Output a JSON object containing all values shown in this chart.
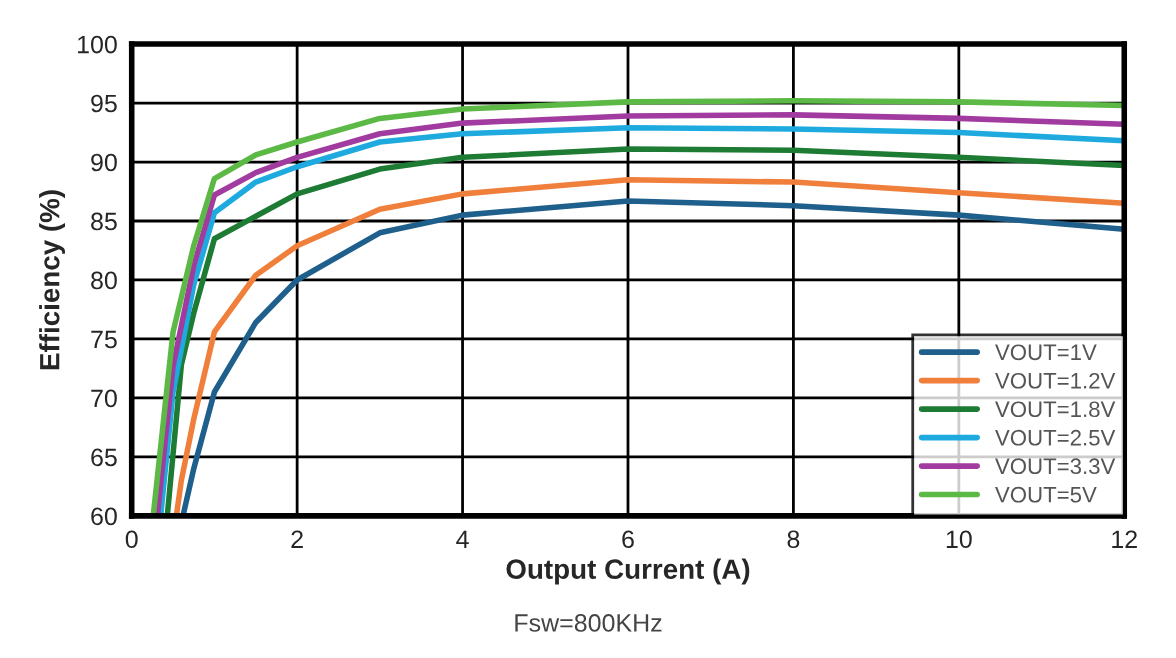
{
  "chart_data": {
    "type": "line",
    "xlabel": "Output Current (A)",
    "ylabel": "Efficiency (%)",
    "xlim": [
      0,
      12
    ],
    "ylim": [
      60,
      100
    ],
    "xticks": [
      0,
      2,
      4,
      6,
      8,
      10,
      12
    ],
    "yticks": [
      60,
      65,
      70,
      75,
      80,
      85,
      90,
      95,
      100
    ],
    "grid": true,
    "legend": "bottom right",
    "marker": "none",
    "line_style": "solid",
    "annotations": [
      "Fsw=800KHz"
    ],
    "series": [
      {
        "name": "VOUT=1V",
        "color": "#1f5f8b",
        "x": [
          0.62,
          0.75,
          1,
          1.5,
          2,
          3,
          4,
          6,
          8,
          10,
          12
        ],
        "values": [
          60,
          64,
          70.5,
          76.4,
          80,
          84,
          85.5,
          86.7,
          86.3,
          85.5,
          84.3
        ]
      },
      {
        "name": "VOUT=1.2V",
        "color": "#f07f3c",
        "x": [
          0.54,
          0.6,
          0.75,
          1,
          1.5,
          2,
          3,
          4,
          6,
          8,
          10,
          12
        ],
        "values": [
          60,
          63,
          68.2,
          75.6,
          80.4,
          82.9,
          86,
          87.3,
          88.5,
          88.3,
          87.4,
          86.5
        ]
      },
      {
        "name": "VOUT=1.8V",
        "color": "#1e7b34",
        "x": [
          0.43,
          0.6,
          0.75,
          1,
          2,
          3,
          4,
          6,
          8,
          10,
          12
        ],
        "values": [
          60,
          72.8,
          77.2,
          83.5,
          87.3,
          89.4,
          90.4,
          91.1,
          91,
          90.4,
          89.7
        ]
      },
      {
        "name": "VOUT=2.5V",
        "color": "#1eaadf",
        "x": [
          0.35,
          0.5,
          0.75,
          1,
          1.5,
          2,
          3,
          4,
          6,
          8,
          10,
          12
        ],
        "values": [
          60,
          70.5,
          79.6,
          85.7,
          88.3,
          89.6,
          91.7,
          92.4,
          92.9,
          92.8,
          92.5,
          91.8
        ]
      },
      {
        "name": "VOUT=3.3V",
        "color": "#a23ba0",
        "x": [
          0.31,
          0.5,
          0.75,
          1,
          1.5,
          2,
          3,
          4,
          6,
          8,
          10,
          12
        ],
        "values": [
          60,
          72.7,
          81.2,
          87.2,
          89.1,
          90.4,
          92.4,
          93.3,
          93.9,
          94,
          93.7,
          93.2
        ]
      },
      {
        "name": "VOUT=5V",
        "color": "#5db945",
        "x": [
          0.26,
          0.5,
          0.75,
          1,
          1.5,
          2,
          3,
          4,
          6,
          8,
          10,
          12
        ],
        "values": [
          60,
          75.6,
          82.9,
          88.6,
          90.6,
          91.7,
          93.7,
          94.5,
          95.1,
          95.2,
          95.1,
          94.8
        ]
      }
    ]
  }
}
